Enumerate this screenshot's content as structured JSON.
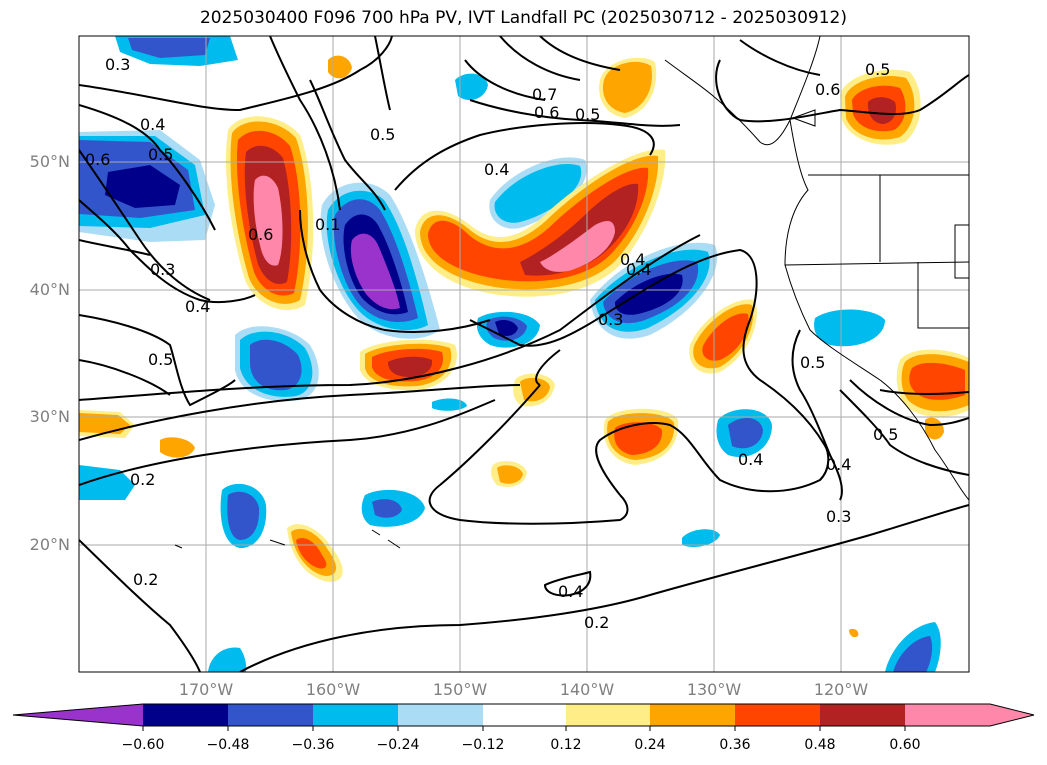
{
  "title": "2025030400 F096 700 hPa PV, IVT Landfall PC (2025030712 - 2025030912)",
  "latitude_labels": [
    "50°N",
    "40°N",
    "30°N",
    "20°N"
  ],
  "longitude_labels": [
    "170°W",
    "160°W",
    "150°W",
    "140°W",
    "130°W",
    "120°W"
  ],
  "colorbar": {
    "tick_labels": [
      "−0.60",
      "−0.48",
      "−0.36",
      "−0.24",
      "−0.12",
      "0.12",
      "0.24",
      "0.36",
      "0.48",
      "0.60"
    ],
    "colors": [
      "#9933cc",
      "#00008b",
      "#3355cc",
      "#00bbee",
      "#aaddf5",
      "#ffffff",
      "#ffee88",
      "#ffa500",
      "#ff4500",
      "#b22222",
      "#ff88aa"
    ]
  },
  "contour_labels": [
    "0.3",
    "0.4",
    "0.5",
    "0.6",
    "0.7",
    "0.6",
    "0.5",
    "0.4",
    "0.5",
    "0.5",
    "0.6",
    "0.3",
    "0.4",
    "0.5",
    "0.1",
    "0.6",
    "0.4",
    "0.3",
    "0.4",
    "0.5",
    "0.5",
    "0.4",
    "0.4",
    "0.3",
    "0.2",
    "0.2",
    "0.4",
    "0.2"
  ]
}
